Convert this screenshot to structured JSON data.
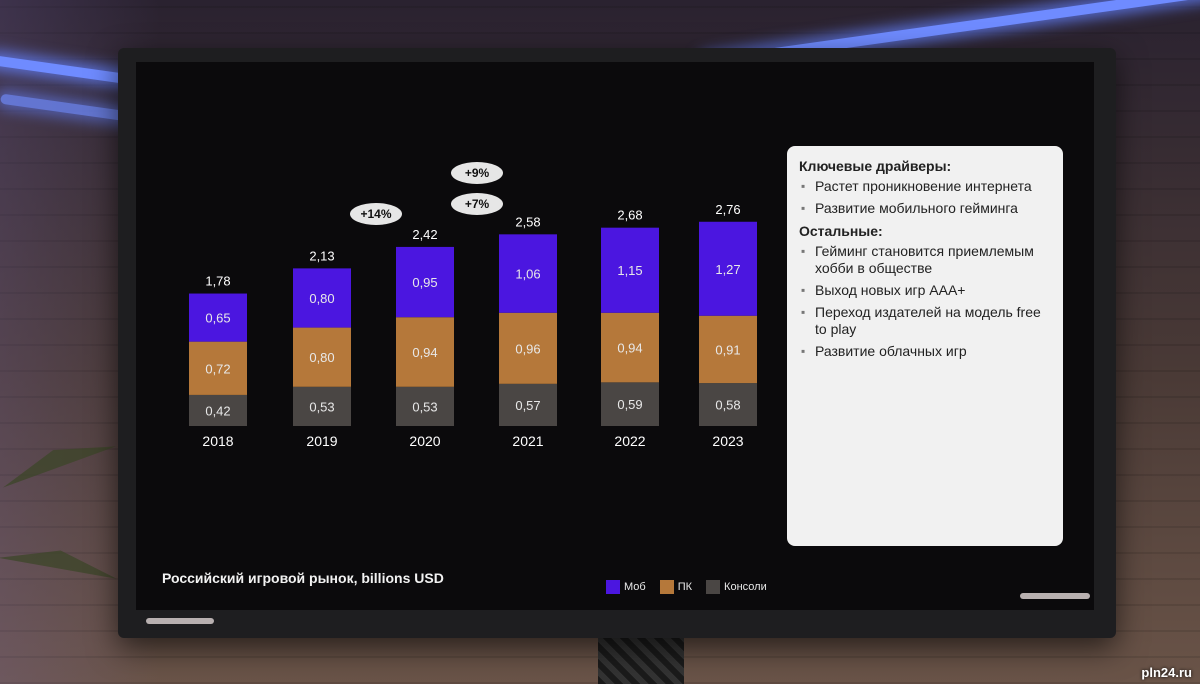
{
  "caption": "Российский игровой рынок, billions  USD",
  "legend": [
    {
      "label": "Моб",
      "color": "#4b16e0"
    },
    {
      "label": "ПК",
      "color": "#b5783a"
    },
    {
      "label": "Консоли",
      "color": "#4a4644"
    }
  ],
  "growth_badges": [
    "+14%",
    "+9%",
    "+7%"
  ],
  "chart_data": {
    "type": "bar",
    "stacked": true,
    "categories": [
      "2018",
      "2019",
      "2020",
      "2021",
      "2022",
      "2023"
    ],
    "series": [
      {
        "name": "Консоли",
        "values": [
          "0,42",
          "0,53",
          "0,53",
          "0,57",
          "0,59",
          "0,58"
        ],
        "color": "#4a4644"
      },
      {
        "name": "ПК",
        "values": [
          "0,72",
          "0,80",
          "0,94",
          "0,96",
          "0,94",
          "0,91"
        ],
        "color": "#b5783a"
      },
      {
        "name": "Моб",
        "values": [
          "0,65",
          "0,80",
          "0,95",
          "1,06",
          "1,15",
          "1,27"
        ],
        "color": "#4b16e0"
      }
    ],
    "totals": [
      "1,78",
      "2,13",
      "2,42",
      "2,58",
      "2,68",
      "2,76"
    ],
    "title": "Российский игровой рынок, billions  USD",
    "legend_position": "bottom"
  },
  "drivers": {
    "key_title": "Ключевые драйверы:",
    "key_items": [
      "Растет проникновение интернета",
      "Развитие мобильного гейминга"
    ],
    "other_title": "Остальные:",
    "other_items": [
      "Гейминг становится приемлемым хобби  в обществе",
      "Выход новых игр AAA+",
      "Переход издателей на модель free to play",
      "Развитие облачных игр"
    ]
  },
  "watermark": "pln24.ru"
}
